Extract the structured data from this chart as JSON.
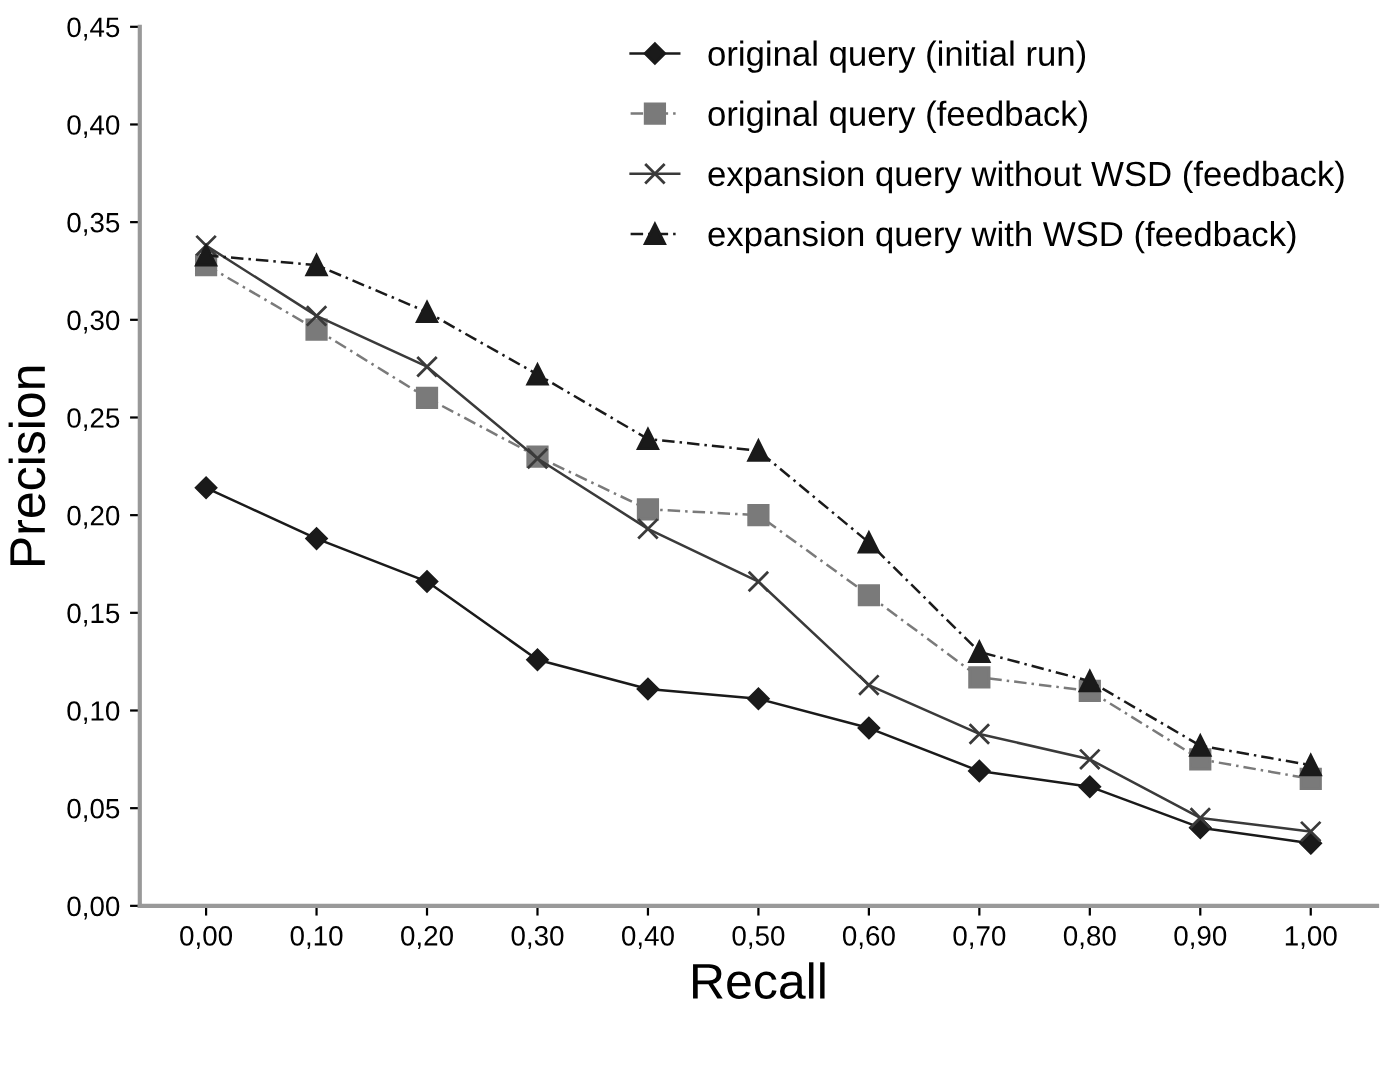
{
  "chart_data": {
    "type": "line",
    "xlabel": "Recall",
    "ylabel": "Precision",
    "categories": [
      "0,00",
      "0,10",
      "0,20",
      "0,30",
      "0,40",
      "0,50",
      "0,60",
      "0,70",
      "0,80",
      "0,90",
      "1,00"
    ],
    "series": [
      {
        "name": "original query (initial run)",
        "color": "#1a1a1a",
        "marker": "diamond",
        "line_style": "solid",
        "values": [
          0.214,
          0.188,
          0.166,
          0.126,
          0.111,
          0.106,
          0.091,
          0.069,
          0.061,
          0.04,
          0.032
        ]
      },
      {
        "name": "original query (feedback)",
        "color": "#7a7a7a",
        "marker": "square",
        "line_style": "dashed",
        "values": [
          0.328,
          0.295,
          0.26,
          0.23,
          0.203,
          0.2,
          0.159,
          0.117,
          0.11,
          0.075,
          0.065
        ]
      },
      {
        "name": "expansion query without WSD (feedback)",
        "color": "#3a3a3a",
        "marker": "cross",
        "line_style": "solid",
        "values": [
          0.338,
          0.302,
          0.276,
          0.229,
          0.193,
          0.166,
          0.113,
          0.088,
          0.075,
          0.045,
          0.038
        ]
      },
      {
        "name": "expansion query with WSD (feedback)",
        "color": "#1a1a1a",
        "marker": "triangle",
        "line_style": "dashed",
        "values": [
          0.333,
          0.328,
          0.304,
          0.272,
          0.239,
          0.233,
          0.186,
          0.13,
          0.115,
          0.082,
          0.072
        ]
      }
    ],
    "ylim": [
      0,
      0.45
    ],
    "yticks": [
      {
        "value": 0,
        "label": "0,00"
      },
      {
        "value": 0.05,
        "label": "0,05"
      },
      {
        "value": 0.1,
        "label": "0,10"
      },
      {
        "value": 0.15,
        "label": "0,15"
      },
      {
        "value": 0.2,
        "label": "0,20"
      },
      {
        "value": 0.25,
        "label": "0,25"
      },
      {
        "value": 0.3,
        "label": "0,30"
      },
      {
        "value": 0.35,
        "label": "0,35"
      },
      {
        "value": 0.4,
        "label": "0,40"
      },
      {
        "value": 0.45,
        "label": "0,45"
      }
    ],
    "grid": false,
    "legend": "top right"
  }
}
